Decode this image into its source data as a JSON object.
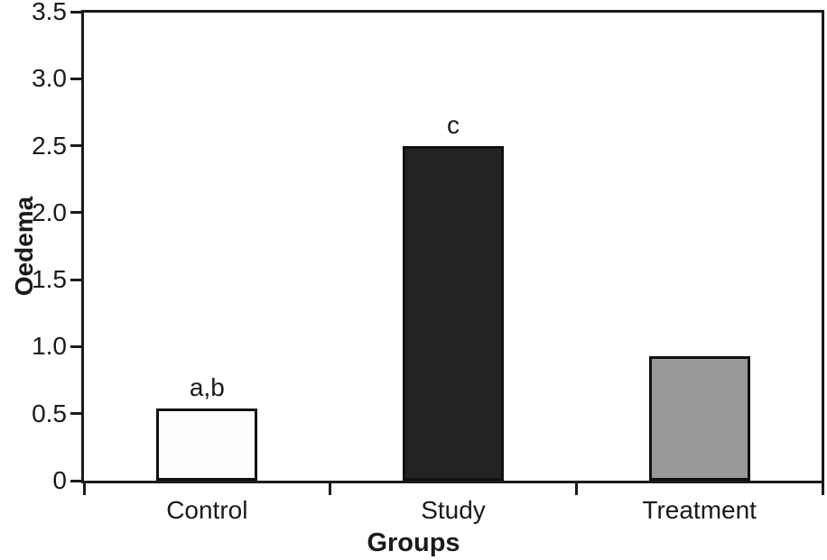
{
  "chart_data": {
    "type": "bar",
    "title": "",
    "categories": [
      "Control",
      "Study",
      "Treatment"
    ],
    "values": [
      0.54,
      2.5,
      0.93
    ],
    "annotations": [
      "a,b",
      "c",
      ""
    ],
    "bar_colors": [
      "#fdfdfd",
      "#232323",
      "#999999"
    ],
    "bar_border_color": "#111111",
    "xlabel": "Groups",
    "ylabel": "Oedema",
    "ylim": [
      0,
      3.5
    ],
    "yticks": [
      "0",
      "0.5",
      "1.0",
      "1.5",
      "2.0",
      "2.5",
      "3.0",
      "3.5"
    ],
    "grid": false,
    "legend": false,
    "axis_color": "#1a1a1a",
    "background_color": "#ffffff"
  }
}
